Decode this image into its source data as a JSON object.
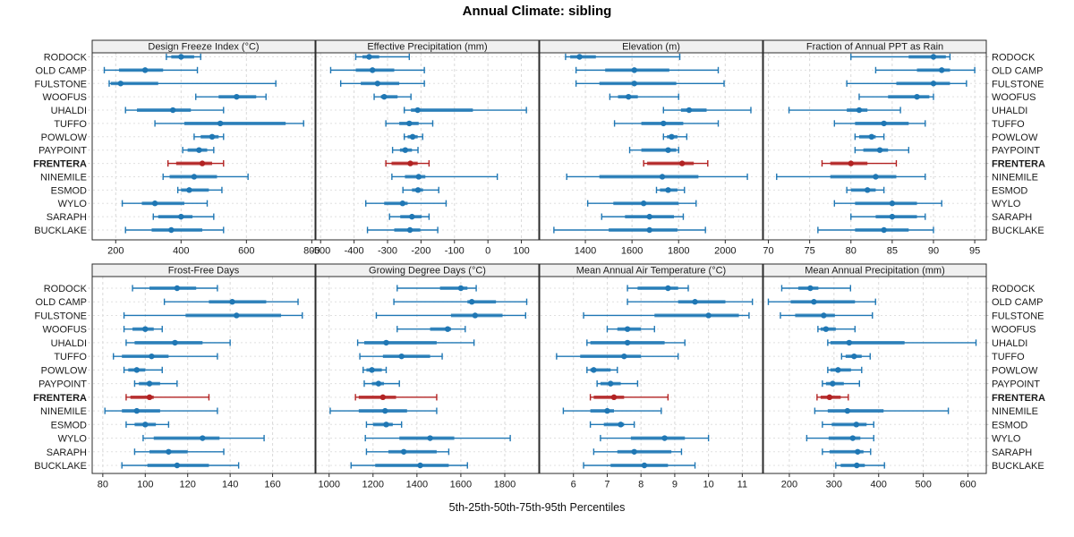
{
  "title": "Annual Climate: sibling",
  "caption": "5th-25th-50th-75th-95th Percentiles",
  "colors": {
    "series": "#1f77b4",
    "highlight": "#b22222",
    "header_bg": "#f0f0f0",
    "frame": "#2b2b2b",
    "grid": "#d9d9d9",
    "row_grid": "#e0e0e0",
    "outer_tick": "#c4c4c4",
    "text": "#1a1a1a"
  },
  "chart_data": {
    "type": "dot-whisker-percentile-trellis",
    "percentiles": [
      "5th",
      "25th",
      "50th",
      "75th",
      "95th"
    ],
    "highlight_site": "FRENTERA",
    "layout": {
      "grid_rows": 2,
      "grid_cols": 4,
      "row_labels": "both-sides",
      "gridlines": "dashed"
    },
    "sites": [
      "RODOCK",
      "OLD CAMP",
      "FULSTONE",
      "WOOFUS",
      "UHALDI",
      "TUFFO",
      "POWLOW",
      "PAYPOINT",
      "FRENTERA",
      "NINEMILE",
      "ESMOD",
      "WYLO",
      "SARAPH",
      "BUCKLAKE"
    ],
    "panels": [
      {
        "title": "Design Freeze Index (°C)",
        "grid_row": 0,
        "grid_col": 0,
        "xlim": [
          128,
          810
        ],
        "ticks": [
          200,
          400,
          600,
          800
        ],
        "series": [
          [
            355,
            370,
            400,
            440,
            460
          ],
          [
            165,
            210,
            290,
            345,
            450
          ],
          [
            180,
            185,
            215,
            330,
            690
          ],
          [
            445,
            515,
            570,
            630,
            660
          ],
          [
            230,
            265,
            375,
            430,
            530
          ],
          [
            320,
            410,
            520,
            720,
            775
          ],
          [
            440,
            460,
            495,
            515,
            530
          ],
          [
            405,
            420,
            455,
            480,
            500
          ],
          [
            360,
            385,
            465,
            495,
            530
          ],
          [
            345,
            365,
            440,
            510,
            605
          ],
          [
            390,
            400,
            425,
            485,
            525
          ],
          [
            220,
            280,
            320,
            410,
            480
          ],
          [
            315,
            330,
            400,
            435,
            500
          ],
          [
            230,
            310,
            370,
            465,
            530
          ]
        ]
      },
      {
        "title": "Effective Precipitation (mm)",
        "grid_row": 0,
        "grid_col": 1,
        "xlim": [
          -514,
          152
        ],
        "ticks": [
          -500,
          -400,
          -300,
          -200,
          -100,
          0,
          100
        ],
        "series": [
          [
            -395,
            -375,
            -355,
            -325,
            -235
          ],
          [
            -470,
            -395,
            -345,
            -280,
            -190
          ],
          [
            -440,
            -380,
            -330,
            -265,
            -190
          ],
          [
            -340,
            -320,
            -310,
            -270,
            -230
          ],
          [
            -250,
            -230,
            -210,
            -45,
            115
          ],
          [
            -305,
            -265,
            -235,
            -207,
            -165
          ],
          [
            -250,
            -240,
            -225,
            -210,
            -195
          ],
          [
            -285,
            -263,
            -247,
            -227,
            -209
          ],
          [
            -305,
            -288,
            -232,
            -210,
            -176
          ],
          [
            -287,
            -248,
            -207,
            -187,
            28
          ],
          [
            -254,
            -227,
            -209,
            -194,
            -147
          ],
          [
            -365,
            -310,
            -255,
            -240,
            -125
          ],
          [
            -294,
            -262,
            -227,
            -198,
            -176
          ],
          [
            -360,
            -280,
            -233,
            -202,
            -150
          ]
        ]
      },
      {
        "title": "Elevation (m)",
        "grid_row": 0,
        "grid_col": 2,
        "xlim": [
          1204,
          2160
        ],
        "ticks": [
          1400,
          1600,
          1800,
          2000
        ],
        "series": [
          [
            1315,
            1335,
            1375,
            1445,
            1805
          ],
          [
            1360,
            1485,
            1610,
            1760,
            1970
          ],
          [
            1360,
            1460,
            1610,
            1790,
            1995
          ],
          [
            1505,
            1540,
            1585,
            1625,
            1800
          ],
          [
            1735,
            1810,
            1845,
            1920,
            2110
          ],
          [
            1525,
            1640,
            1735,
            1820,
            1970
          ],
          [
            1735,
            1750,
            1770,
            1795,
            1835
          ],
          [
            1590,
            1640,
            1755,
            1790,
            1800
          ],
          [
            1650,
            1665,
            1815,
            1865,
            1925
          ],
          [
            1320,
            1460,
            1730,
            1885,
            2095
          ],
          [
            1705,
            1720,
            1755,
            1795,
            1825
          ],
          [
            1410,
            1520,
            1650,
            1800,
            1875
          ],
          [
            1470,
            1570,
            1675,
            1780,
            1820
          ],
          [
            1265,
            1500,
            1675,
            1795,
            1915
          ]
        ]
      },
      {
        "title": "Fraction of Annual PPT as Rain",
        "grid_row": 0,
        "grid_col": 3,
        "xlim": [
          69.4,
          96.4
        ],
        "ticks": [
          70,
          75,
          80,
          85,
          90,
          95
        ],
        "series": [
          [
            80,
            87,
            90,
            91.5,
            92
          ],
          [
            83,
            88,
            91,
            92,
            95
          ],
          [
            79.5,
            85.5,
            90,
            92,
            94
          ],
          [
            81,
            84.5,
            88,
            89.5,
            90
          ],
          [
            72.5,
            79.5,
            81,
            82,
            86
          ],
          [
            78,
            80.5,
            84,
            87,
            89
          ],
          [
            80.5,
            81,
            82.5,
            83,
            84
          ],
          [
            80.5,
            81.5,
            83.5,
            84.5,
            87
          ],
          [
            76.5,
            77.5,
            80,
            82,
            85.5
          ],
          [
            71,
            77.5,
            83,
            85.5,
            89
          ],
          [
            79.5,
            80,
            82,
            83,
            84
          ],
          [
            78,
            80.5,
            85,
            88,
            91
          ],
          [
            80,
            83,
            85,
            88,
            89
          ],
          [
            76,
            80.5,
            84,
            87,
            90
          ]
        ]
      },
      {
        "title": "Frost-Free Days",
        "grid_row": 1,
        "grid_col": 0,
        "xlim": [
          75,
          180
        ],
        "ticks": [
          80,
          100,
          120,
          140,
          160
        ],
        "series": [
          [
            94,
            102,
            115,
            124,
            134
          ],
          [
            109,
            130,
            141,
            157,
            172
          ],
          [
            90,
            119,
            143,
            164,
            174
          ],
          [
            90,
            94,
            100,
            104,
            108
          ],
          [
            91,
            95,
            114,
            127,
            140
          ],
          [
            85,
            89,
            103,
            111,
            134
          ],
          [
            90,
            92,
            96,
            100,
            108
          ],
          [
            95,
            97,
            102,
            107,
            115
          ],
          [
            91,
            93,
            102,
            104,
            130
          ],
          [
            81,
            89,
            96,
            107,
            134
          ],
          [
            91,
            95,
            100,
            105,
            111
          ],
          [
            99,
            104,
            127,
            135,
            156
          ],
          [
            95,
            102,
            111,
            120,
            137
          ],
          [
            89,
            101,
            115,
            130,
            144
          ]
        ]
      },
      {
        "title": "Growing Degree Days (°C)",
        "grid_row": 1,
        "grid_col": 1,
        "xlim": [
          940,
          1955
        ],
        "ticks": [
          1000,
          1200,
          1400,
          1600,
          1800
        ],
        "series": [
          [
            1310,
            1505,
            1600,
            1630,
            1670
          ],
          [
            1295,
            1630,
            1650,
            1760,
            1900
          ],
          [
            1215,
            1555,
            1665,
            1790,
            1895
          ],
          [
            1310,
            1460,
            1540,
            1555,
            1620
          ],
          [
            1130,
            1160,
            1260,
            1490,
            1660
          ],
          [
            1140,
            1245,
            1330,
            1460,
            1515
          ],
          [
            1155,
            1170,
            1195,
            1240,
            1260
          ],
          [
            1160,
            1195,
            1225,
            1250,
            1320
          ],
          [
            1120,
            1135,
            1245,
            1305,
            1490
          ],
          [
            1005,
            1135,
            1255,
            1355,
            1490
          ],
          [
            1170,
            1200,
            1260,
            1290,
            1330
          ],
          [
            1165,
            1320,
            1460,
            1570,
            1825
          ],
          [
            1170,
            1270,
            1340,
            1490,
            1545
          ],
          [
            1100,
            1210,
            1415,
            1545,
            1630
          ]
        ]
      },
      {
        "title": "Mean Annual Air Temperature (°C)",
        "grid_row": 1,
        "grid_col": 2,
        "xlim": [
          5.0,
          11.6
        ],
        "ticks": [
          6,
          7,
          8,
          9,
          10,
          11
        ],
        "series": [
          [
            7.6,
            7.9,
            8.8,
            9.1,
            9.4
          ],
          [
            7.6,
            9.1,
            9.6,
            10.5,
            11.3
          ],
          [
            6.3,
            8.4,
            10.0,
            10.9,
            11.2
          ],
          [
            7.0,
            7.3,
            7.6,
            8.0,
            8.4
          ],
          [
            6.4,
            6.5,
            7.6,
            8.7,
            9.3
          ],
          [
            5.5,
            6.2,
            7.5,
            8.0,
            9.1
          ],
          [
            6.4,
            6.5,
            6.6,
            7.1,
            7.3
          ],
          [
            6.7,
            6.8,
            7.1,
            7.4,
            7.9
          ],
          [
            6.5,
            6.6,
            7.2,
            7.5,
            8.8
          ],
          [
            5.7,
            6.5,
            7.0,
            7.2,
            8.6
          ],
          [
            6.5,
            6.9,
            7.4,
            7.5,
            7.8
          ],
          [
            6.8,
            7.7,
            8.7,
            9.3,
            10.0
          ],
          [
            6.6,
            7.3,
            7.8,
            8.9,
            9.2
          ],
          [
            6.3,
            7.1,
            8.1,
            8.8,
            9.6
          ]
        ]
      },
      {
        "title": "Mean Annual Precipitation (mm)",
        "grid_row": 1,
        "grid_col": 3,
        "xlim": [
          142,
          641
        ],
        "ticks": [
          200,
          300,
          400,
          500,
          600
        ],
        "series": [
          [
            183,
            220,
            247,
            265,
            337
          ],
          [
            153,
            203,
            255,
            347,
            393
          ],
          [
            180,
            213,
            277,
            302,
            386
          ],
          [
            264,
            270,
            282,
            304,
            347
          ],
          [
            286,
            292,
            334,
            458,
            618
          ],
          [
            317,
            326,
            345,
            362,
            381
          ],
          [
            286,
            292,
            309,
            338,
            362
          ],
          [
            274,
            282,
            297,
            322,
            357
          ],
          [
            262,
            270,
            290,
            315,
            332
          ],
          [
            257,
            286,
            330,
            411,
            556
          ],
          [
            274,
            295,
            350,
            373,
            389
          ],
          [
            239,
            288,
            342,
            359,
            389
          ],
          [
            274,
            290,
            353,
            366,
            382
          ],
          [
            304,
            315,
            351,
            369,
            413
          ]
        ]
      }
    ]
  }
}
